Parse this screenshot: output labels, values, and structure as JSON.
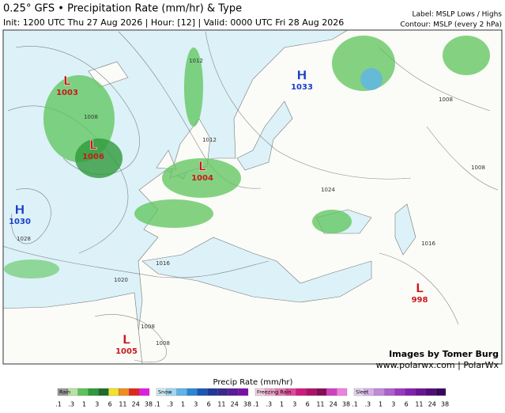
{
  "header": {
    "title": "0.25° GFS • Precipitation Rate (mm/hr) & Type",
    "subtitle": "Init: 1200 UTC Thu 27 Aug 2026 | Hour: [12] | Valid: 0000 UTC Fri 28 Aug 2026",
    "label_note": "Label: MSLP Lows / Highs",
    "contour_note": "Contour: MSLP (every 2 hPa)"
  },
  "centers": [
    {
      "letter": "L",
      "value": "1003",
      "kind": "low"
    },
    {
      "letter": "L",
      "value": "1006",
      "kind": "low"
    },
    {
      "letter": "L",
      "value": "1004",
      "kind": "low"
    },
    {
      "letter": "H",
      "value": "1030",
      "kind": "high"
    },
    {
      "letter": "H",
      "value": "1033",
      "kind": "high"
    },
    {
      "letter": "L",
      "value": "998",
      "kind": "low"
    },
    {
      "letter": "L",
      "value": "1005",
      "kind": "low"
    }
  ],
  "contour_labels": [
    "1012",
    "1008",
    "1012",
    "1024",
    "1028",
    "1020",
    "1016",
    "1008",
    "1008",
    "1008",
    "1008",
    "1016"
  ],
  "credits": {
    "author": "Images by Tomer Burg",
    "site": "www.polarwx.com | PolarWx"
  },
  "legend": {
    "title": "Precip Rate (mm/hr)",
    "ticks": [
      ".1",
      ".3",
      "1",
      "3",
      "6",
      "11",
      "24",
      "38"
    ],
    "scales": [
      {
        "name": "Rain",
        "colors": [
          "#9a9a9a",
          "#b9e3a4",
          "#5cc45a",
          "#2e9a3a",
          "#1e6b2a",
          "#f2e32a",
          "#f28c1e",
          "#e0271e",
          "#e01ee0"
        ]
      },
      {
        "name": "Snow",
        "colors": [
          "#d2eef8",
          "#9fd6f2",
          "#5eb4ea",
          "#2a86d6",
          "#1a58b8",
          "#1d3a98",
          "#3a2a8a",
          "#5a1a9a",
          "#7a10a8"
        ]
      },
      {
        "name": "Freezing Rain",
        "colors": [
          "#f6d2e4",
          "#f0a8cc",
          "#e878b0",
          "#e04898",
          "#d01a80",
          "#b0106a",
          "#8a0a54",
          "#d040c0",
          "#f080e0"
        ]
      },
      {
        "name": "Sleet",
        "colors": [
          "#ead8f2",
          "#d6b0e6",
          "#c288da",
          "#ae60ce",
          "#9a38c2",
          "#8420b0",
          "#6a1494",
          "#520c78",
          "#3a065c"
        ]
      }
    ]
  }
}
